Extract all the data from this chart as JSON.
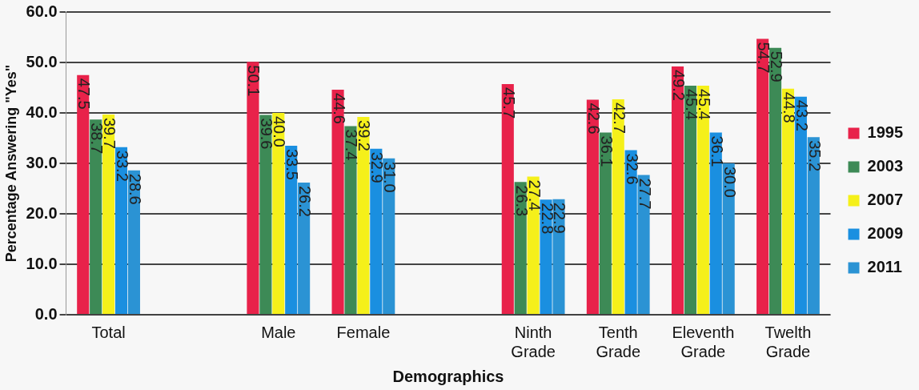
{
  "chart_data": {
    "type": "bar",
    "xlabel": "Demographics",
    "ylabel": "Percentage Answering \"Yes\"",
    "categories": [
      "Total",
      null,
      "Male",
      "Female",
      null,
      "Ninth Grade",
      "Tenth Grade",
      "Eleventh Grade",
      "Twelth Grade"
    ],
    "series": [
      {
        "name": "1995",
        "color": "#e8224a",
        "values": [
          47.5,
          null,
          50.1,
          44.6,
          null,
          45.7,
          42.6,
          49.2,
          54.7
        ],
        "value_labels": [
          "47.5",
          null,
          "50.1",
          "44.6",
          null,
          "45.7",
          "42.6",
          "49.2",
          "54.7"
        ]
      },
      {
        "name": "2003",
        "color": "#3d8a56",
        "values": [
          38.7,
          null,
          39.6,
          37.4,
          null,
          26.3,
          36.1,
          45.4,
          52.9
        ],
        "value_labels": [
          "38.7",
          null,
          "39.6",
          "37.4",
          null,
          "26.3",
          "36.1",
          "45.4",
          "52.9"
        ]
      },
      {
        "name": "2007",
        "color": "#f5f01a",
        "values": [
          39.7,
          null,
          40.0,
          39.2,
          null,
          27.4,
          42.7,
          45.4,
          44.8
        ],
        "value_labels": [
          "39.7",
          null,
          "40.0",
          "39.2",
          null,
          "27.4",
          "42.7",
          "45.4",
          "44.8"
        ]
      },
      {
        "name": "2009",
        "color": "#1a8fe0",
        "values": [
          33.2,
          null,
          33.5,
          32.9,
          null,
          22.8,
          32.6,
          36.1,
          43.2
        ],
        "value_labels": [
          "33.2",
          null,
          "33.5",
          "32.9",
          null,
          "22.8",
          "32.6",
          "36.1",
          "43.2"
        ]
      },
      {
        "name": "2011",
        "color": "#2b93d4",
        "values": [
          28.6,
          null,
          26.2,
          31.0,
          null,
          22.9,
          27.7,
          30.0,
          35.2
        ],
        "value_labels": [
          "28.6",
          null,
          "26.2",
          "31.0",
          null,
          "22.9",
          "27.7",
          "30.0",
          "35.2"
        ]
      }
    ],
    "ylim": [
      0,
      60
    ],
    "yticks": [
      {
        "value": 0,
        "label": "0.0"
      },
      {
        "value": 10,
        "label": "10.0"
      },
      {
        "value": 20,
        "label": "20.0"
      },
      {
        "value": 30,
        "label": "30.0"
      },
      {
        "value": 40,
        "label": "40.0"
      },
      {
        "value": 50,
        "label": "50.0"
      },
      {
        "value": 60,
        "label": "60.0"
      }
    ],
    "grid": "y",
    "legend": "right"
  }
}
